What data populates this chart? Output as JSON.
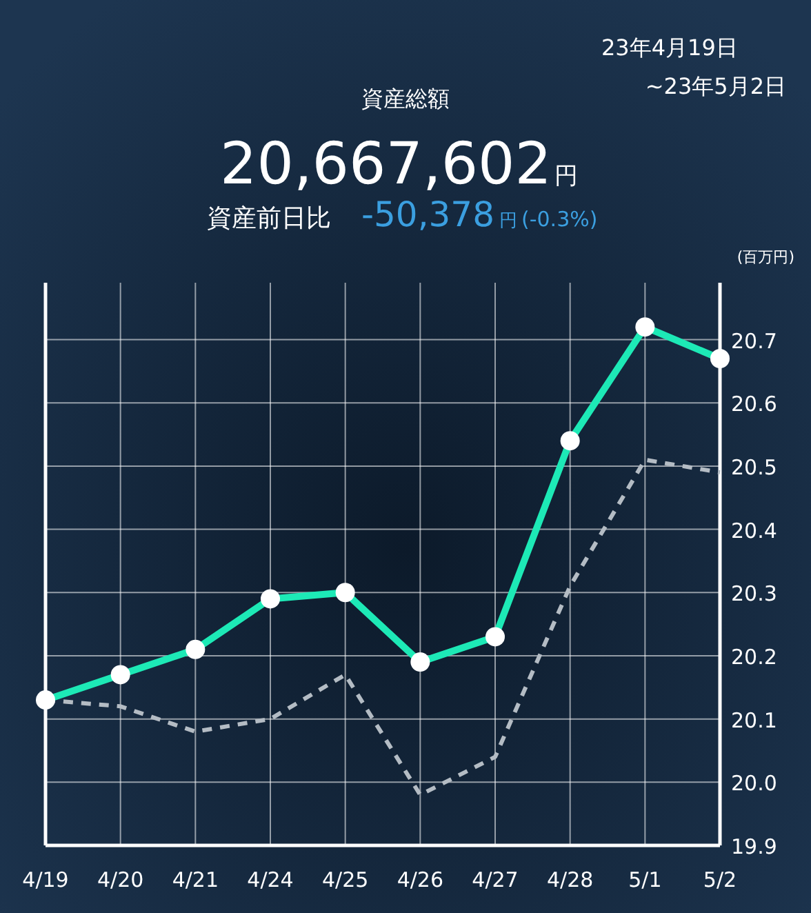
{
  "chart_data": {
    "type": "line",
    "title": "資産総額",
    "ylabel": "(百万円)",
    "annotations": [
      "20,667,602",
      "円",
      "資産前日比",
      "-50,378",
      "円",
      "(-0.3%)",
      "23年4月19日",
      "~23年5月2日"
    ],
    "categories": [
      "4/19",
      "4/20",
      "4/21",
      "4/24",
      "4/25",
      "4/26",
      "4/27",
      "4/28",
      "5/1",
      "5/2"
    ],
    "series": [
      {
        "color": "#1de9b6",
        "marker": "circle",
        "line_style": "solid",
        "values": [
          20.13,
          20.17,
          20.21,
          20.29,
          20.3,
          20.19,
          20.23,
          20.54,
          20.72,
          20.67
        ]
      },
      {
        "color": "#b4bcc4",
        "marker": "none",
        "line_style": "dashed",
        "values": [
          20.13,
          20.12,
          20.08,
          20.1,
          20.17,
          19.98,
          20.04,
          20.31,
          20.51,
          20.49
        ]
      }
    ],
    "ylim": [
      19.9,
      20.79
    ],
    "yticks": [
      19.9,
      {
        "value": 20,
        "label": "20.0"
      },
      20.1,
      20.2,
      20.3,
      20.4,
      20.5,
      20.6,
      20.7
    ],
    "grid": true
  }
}
